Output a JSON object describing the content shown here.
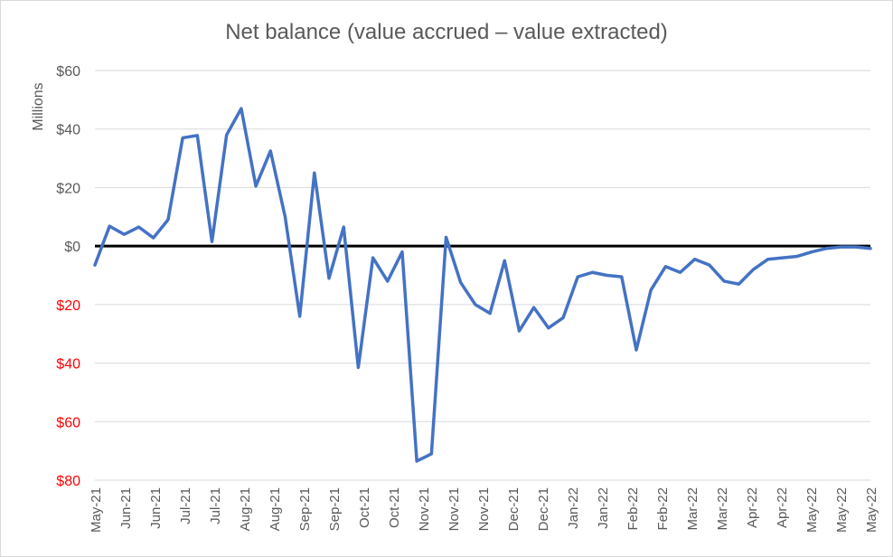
{
  "chart_data": {
    "type": "line",
    "title": "Net balance (value accrued – value extracted)",
    "ylabel": "Millions",
    "xlabel": "",
    "ylim": [
      -80,
      60
    ],
    "y_ticks": [
      {
        "value": 60,
        "label": "$60"
      },
      {
        "value": 40,
        "label": "$40"
      },
      {
        "value": 20,
        "label": "$20"
      },
      {
        "value": 0,
        "label": "$0"
      },
      {
        "value": -20,
        "label": "$20"
      },
      {
        "value": -40,
        "label": "$40"
      },
      {
        "value": -60,
        "label": "$60"
      },
      {
        "value": -80,
        "label": "$80"
      }
    ],
    "negative_tick_color": "#ff0000",
    "positive_tick_color": "#595959",
    "x_tick_labels": [
      "May-21",
      "Jun-21",
      "Jun-21",
      "Jul-21",
      "Jul-21",
      "Aug-21",
      "Aug-21",
      "Sep-21",
      "Sep-21",
      "Oct-21",
      "Oct-21",
      "Nov-21",
      "Nov-21",
      "Nov-21",
      "Dec-21",
      "Dec-21",
      "Jan-22",
      "Jan-22",
      "Feb-22",
      "Feb-22",
      "Mar-22",
      "Mar-22",
      "Apr-22",
      "Apr-22",
      "May-22",
      "May-22",
      "May-22"
    ],
    "series_color": "#4472c4",
    "zero_line_color": "#000000",
    "grid": true,
    "series": [
      {
        "values": [
          -6.5,
          6.8,
          4,
          6.5,
          2.8,
          9,
          37,
          37.8,
          1.5,
          38,
          47,
          20.5,
          32.5,
          10,
          -24,
          25,
          -11,
          6.5,
          -41.5,
          -4,
          -12,
          -2,
          -73.5,
          -71,
          3,
          -12.5,
          -20,
          -23,
          -5,
          -29,
          -21,
          -28,
          -24.5,
          -10.5,
          -9,
          -10,
          -10.5,
          -35.5,
          -15,
          -7,
          -9,
          -4.5,
          -6.5,
          -12,
          -13,
          -8,
          -4.5,
          -4,
          -3.5,
          -2,
          -0.8,
          -0.3,
          -0.3,
          -0.8
        ]
      }
    ]
  }
}
